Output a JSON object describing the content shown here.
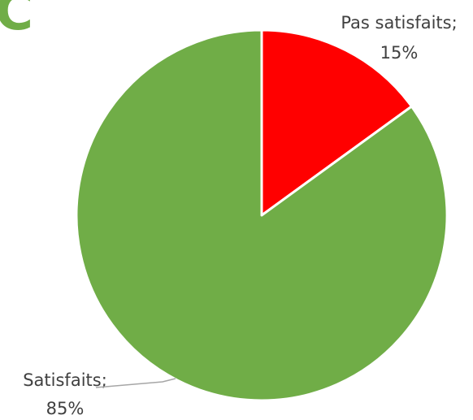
{
  "chart_data": {
    "type": "pie",
    "title": "C",
    "categories": [
      "Pas satisfaits;",
      "Satisfaits;"
    ],
    "values": [
      15,
      85
    ],
    "value_labels": [
      "15%",
      "85%"
    ],
    "colors": [
      "#ff0000",
      "#70ad47"
    ]
  }
}
